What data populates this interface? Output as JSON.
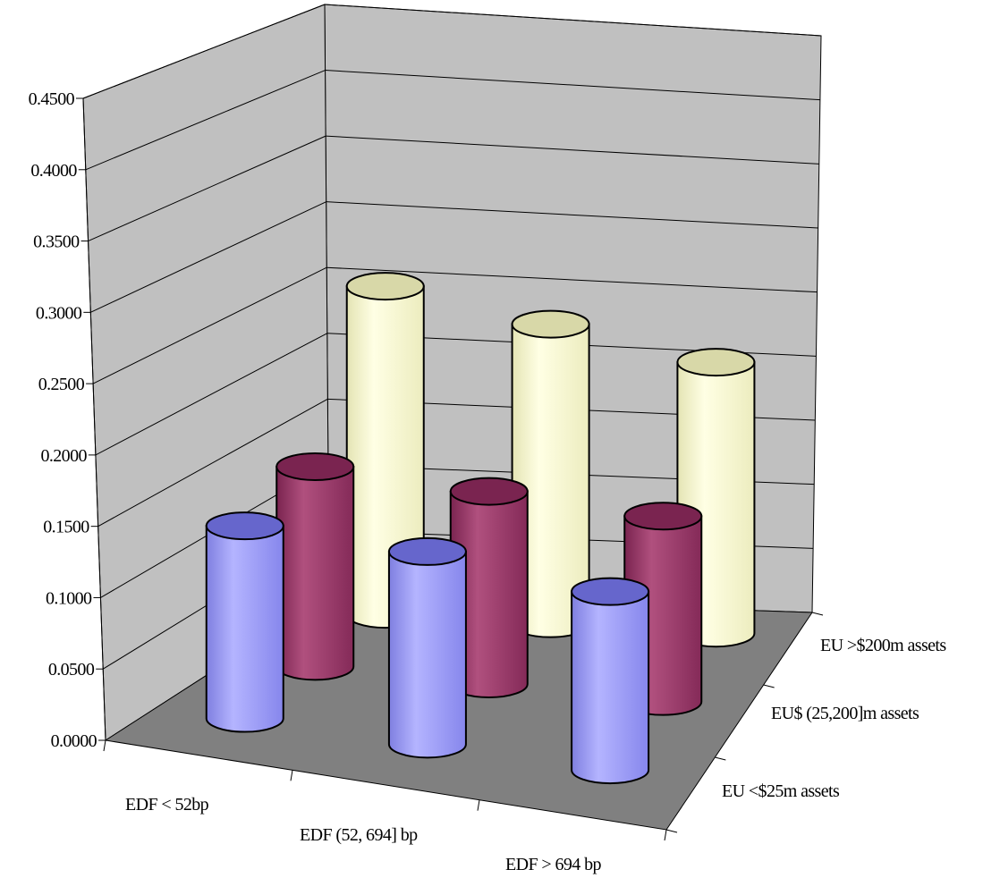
{
  "chart_data": {
    "type": "bar",
    "style": "3d-cylinder",
    "title": "",
    "xlabel": "",
    "ylabel": "",
    "ylim": [
      0,
      0.45
    ],
    "yticks": [
      "0.0000",
      "0.0500",
      "0.1000",
      "0.1500",
      "0.2000",
      "0.2500",
      "0.3000",
      "0.3500",
      "0.4000",
      "0.4500"
    ],
    "grid": true,
    "legend": "none",
    "categories": [
      "EDF < 52bp",
      "EDF (52, 694] bp",
      "EDF > 694 bp"
    ],
    "series": [
      {
        "name": "EU <$25m assets",
        "values": [
          0.135,
          0.135,
          0.125
        ],
        "color": "#9999ff"
      },
      {
        "name": "EU$ (25,200]m assets",
        "values": [
          0.14,
          0.135,
          0.13
        ],
        "color": "#993366"
      },
      {
        "name": "EU >$200m assets",
        "values": [
          0.23,
          0.21,
          0.19
        ],
        "color": "#ffffcc"
      }
    ]
  }
}
